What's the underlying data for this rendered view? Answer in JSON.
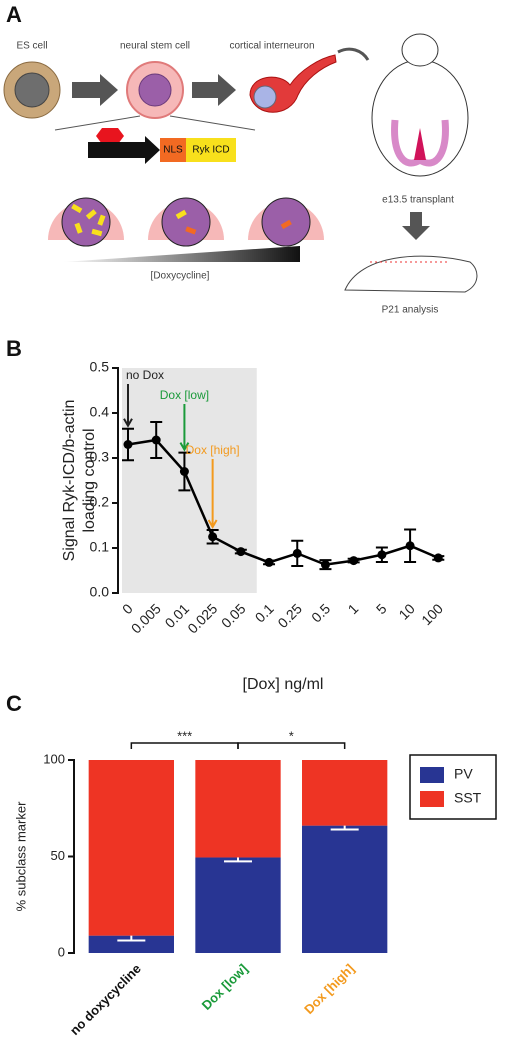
{
  "diagram": {
    "panel_label": "A",
    "es_cell": "ES cell",
    "neural_stem_cell": "neural stem cell",
    "cortical_interneuron": "cortical interneuron",
    "nls": "NLS",
    "ryk_icd": "Ryk ICD",
    "doxycycline": "[Doxycycline]",
    "transplant": "e13.5 transplant",
    "analysis": "P21 analysis"
  },
  "chart_data": [
    {
      "type": "line",
      "panel_label": "B",
      "color": "#000000",
      "ylabel_lines": [
        "Signal Ryk-ICD/b-actin",
        "loading control"
      ],
      "xlabel": "[Dox] ng/ml",
      "categories": [
        "0",
        "0.005",
        "0.01",
        "0.025",
        "0.05",
        "0.1",
        "0.25",
        "0.5",
        "1",
        "5",
        "10",
        "100"
      ],
      "values": [
        0.33,
        0.34,
        0.27,
        0.125,
        0.092,
        0.068,
        0.088,
        0.063,
        0.072,
        0.085,
        0.105,
        0.078
      ],
      "errors": [
        0.035,
        0.04,
        0.042,
        0.015,
        0.004,
        0.004,
        0.028,
        0.01,
        0.004,
        0.016,
        0.036,
        0.004
      ],
      "ylim": [
        0,
        0.5
      ],
      "yticks": [
        {
          "value": 0,
          "label": "0.0"
        },
        0.1,
        0.2,
        0.3,
        0.4,
        0.5
      ],
      "shaded": {
        "from": 0,
        "to": 4,
        "color": "#e6e6e6"
      },
      "annotations": [
        {
          "text": "no Dox",
          "category_index": 0,
          "color": "#222222"
        },
        {
          "text": "Dox [low]",
          "category_index": 2,
          "color": "#1a9a3a"
        },
        {
          "text": "Dox [high]",
          "category_index": 3,
          "color": "#f39a1e"
        }
      ]
    },
    {
      "type": "stacked_bar",
      "panel_label": "C",
      "ylabel": "% subclass marker",
      "categories": [
        "no doxycycline",
        "Dox [low]",
        "Dox [high]"
      ],
      "category_colors": [
        "#111111",
        "#1a9a3a",
        "#f39a1e"
      ],
      "series": [
        {
          "name": "PV",
          "color": "#283593",
          "values": [
            9,
            49.5,
            66
          ],
          "errors": [
            2.5,
            2,
            2
          ]
        },
        {
          "name": "SST",
          "color": "#ee3424",
          "values": [
            91,
            50.5,
            34
          ]
        }
      ],
      "ylim": [
        0,
        100
      ],
      "yticks": [
        0,
        50,
        100
      ],
      "legend": "top-right",
      "significance": [
        {
          "from": 0,
          "to": 1,
          "label": "***"
        },
        {
          "from": 1,
          "to": 2,
          "label": "*"
        }
      ]
    }
  ]
}
